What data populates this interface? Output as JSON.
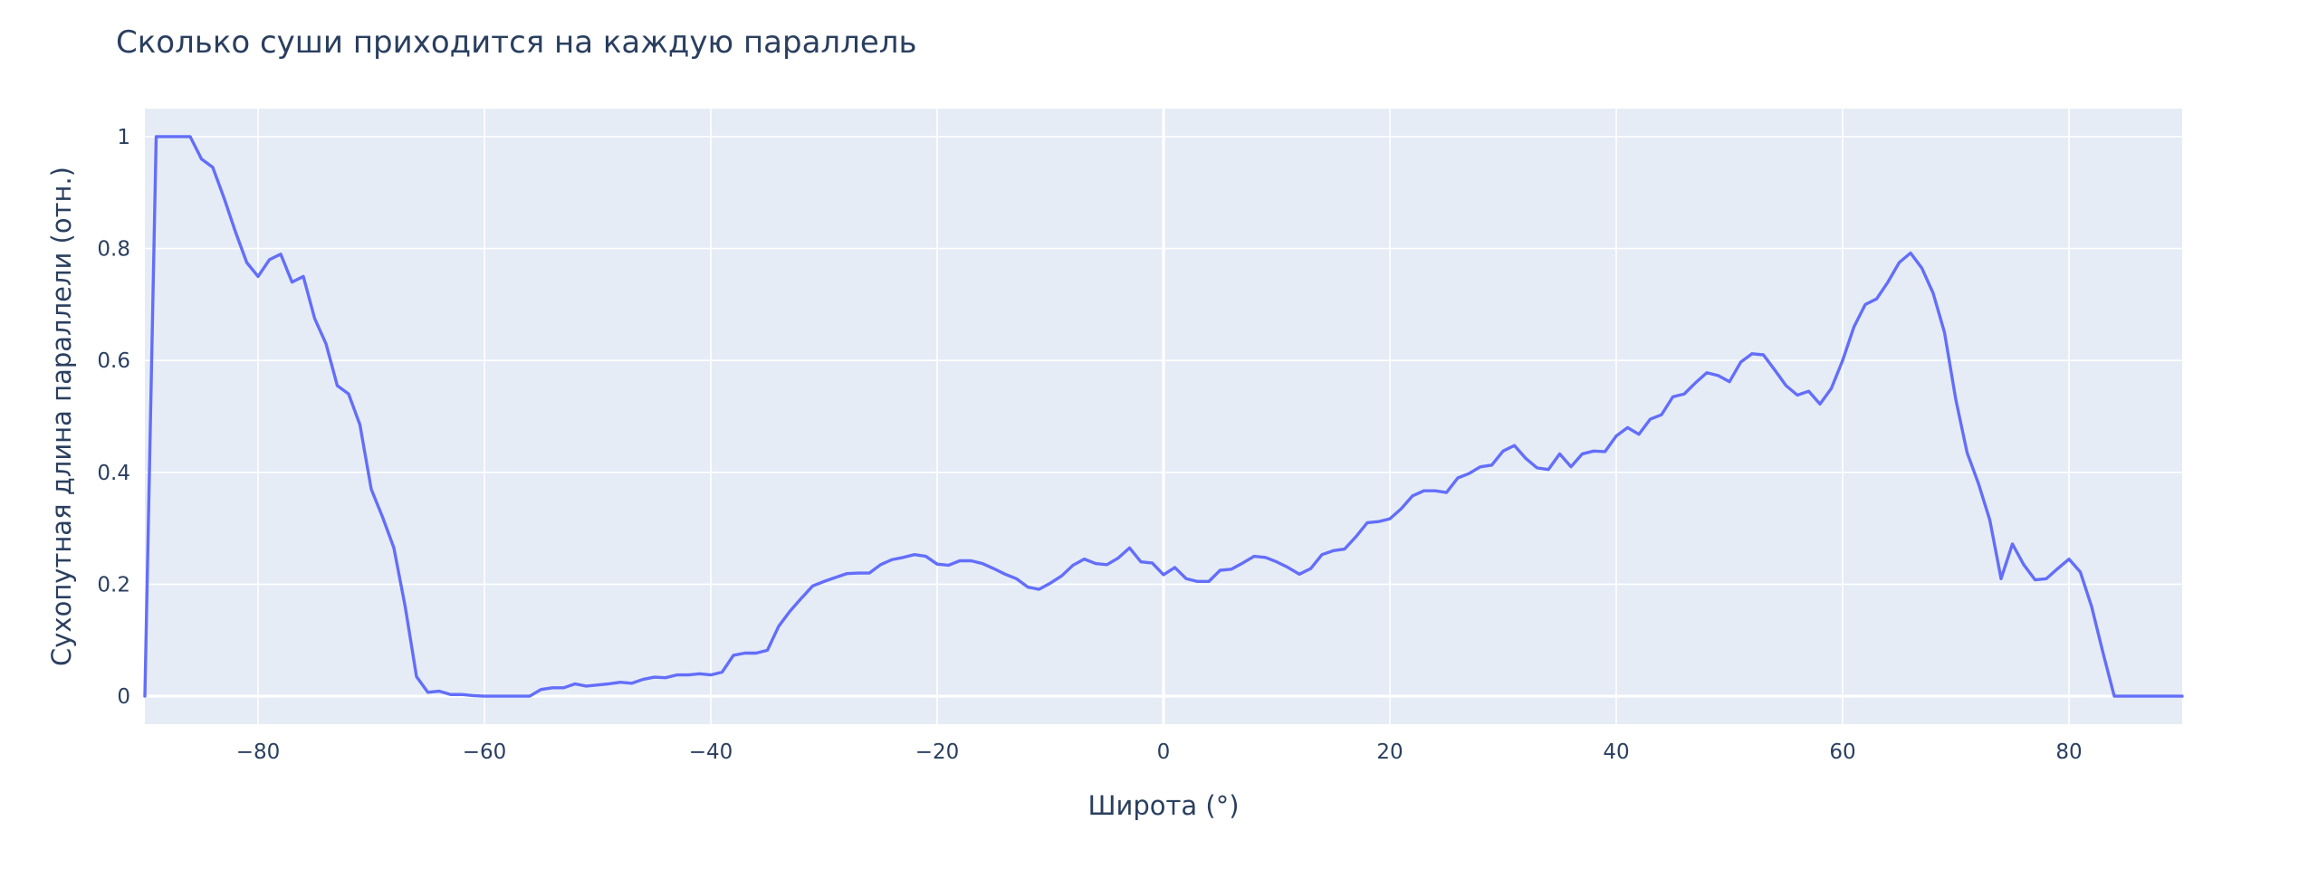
{
  "chart_data": {
    "type": "line",
    "title": "Сколько суши приходится на каждую параллель",
    "xlabel": "Широта (°)",
    "ylabel": "Сухопутная длина параллели (отн.)",
    "xlim": [
      -90,
      90
    ],
    "ylim": [
      -0.05,
      1.05
    ],
    "xticks": [
      -80,
      -60,
      -40,
      -20,
      0,
      20,
      40,
      60,
      80
    ],
    "xtick_labels": [
      "−80",
      "−60",
      "−40",
      "−20",
      "0",
      "20",
      "40",
      "60",
      "80"
    ],
    "yticks": [
      0,
      0.2,
      0.4,
      0.6,
      0.8,
      1
    ],
    "ytick_labels": [
      "0",
      "0.2",
      "0.4",
      "0.6",
      "0.8",
      "1"
    ],
    "grid": true,
    "colors": {
      "line": "#636efa",
      "plot_bg": "#e5ecf6",
      "grid": "#ffffff",
      "text": "#2a3f5f"
    },
    "series": [
      {
        "x": [
          -90,
          -89,
          -88,
          -87,
          -86,
          -85,
          -84,
          -83,
          -82,
          -81,
          -80,
          -79,
          -78,
          -77,
          -76,
          -75,
          -74,
          -73,
          -72,
          -71,
          -70,
          -69,
          -68,
          -67,
          -66,
          -65,
          -64,
          -63,
          -62,
          -61,
          -60,
          -59,
          -58,
          -57,
          -56,
          -55,
          -54,
          -53,
          -52,
          -51,
          -50,
          -49,
          -48,
          -47,
          -46,
          -45,
          -44,
          -43,
          -42,
          -41,
          -40,
          -39,
          -38,
          -37,
          -36,
          -35,
          -34,
          -33,
          -32,
          -31,
          -30,
          -29,
          -28,
          -27,
          -26,
          -25,
          -24,
          -23,
          -22,
          -21,
          -20,
          -19,
          -18,
          -17,
          -16,
          -15,
          -14,
          -13,
          -12,
          -11,
          -10,
          -9,
          -8,
          -7,
          -6,
          -5,
          -4,
          -3,
          -2,
          -1,
          0,
          1,
          2,
          3,
          4,
          5,
          6,
          7,
          8,
          9,
          10,
          11,
          12,
          13,
          14,
          15,
          16,
          17,
          18,
          19,
          20,
          21,
          22,
          23,
          24,
          25,
          26,
          27,
          28,
          29,
          30,
          31,
          32,
          33,
          34,
          35,
          36,
          37,
          38,
          39,
          40,
          41,
          42,
          43,
          44,
          45,
          46,
          47,
          48,
          49,
          50,
          51,
          52,
          53,
          54,
          55,
          56,
          57,
          58,
          59,
          60,
          61,
          62,
          63,
          64,
          65,
          66,
          67,
          68,
          69,
          70,
          71,
          72,
          73,
          74,
          75,
          76,
          77,
          78,
          79,
          80,
          81,
          82,
          83,
          84,
          85,
          86,
          87,
          88,
          89,
          90
        ],
        "y": [
          0,
          1,
          1,
          1,
          1,
          0.96,
          0.945,
          0.89,
          0.83,
          0.775,
          0.75,
          0.78,
          0.79,
          0.74,
          0.75,
          0.675,
          0.63,
          0.555,
          0.54,
          0.485,
          0.37,
          0.32,
          0.265,
          0.16,
          0.035,
          0.007,
          0.009,
          0.003,
          0.003,
          0.001,
          0,
          0,
          0,
          0,
          0,
          0.012,
          0.015,
          0.015,
          0.022,
          0.018,
          0.02,
          0.022,
          0.025,
          0.023,
          0.03,
          0.034,
          0.033,
          0.038,
          0.038,
          0.04,
          0.038,
          0.043,
          0.073,
          0.077,
          0.077,
          0.082,
          0.125,
          0.152,
          0.175,
          0.197,
          0.205,
          0.212,
          0.219,
          0.22,
          0.22,
          0.235,
          0.244,
          0.248,
          0.253,
          0.25,
          0.236,
          0.234,
          0.242,
          0.242,
          0.237,
          0.228,
          0.218,
          0.21,
          0.195,
          0.191,
          0.202,
          0.215,
          0.234,
          0.245,
          0.237,
          0.235,
          0.247,
          0.265,
          0.24,
          0.238,
          0.217,
          0.23,
          0.21,
          0.205,
          0.205,
          0.225,
          0.227,
          0.238,
          0.25,
          0.248,
          0.24,
          0.23,
          0.218,
          0.228,
          0.253,
          0.26,
          0.263,
          0.285,
          0.31,
          0.312,
          0.317,
          0.335,
          0.358,
          0.367,
          0.367,
          0.364,
          0.39,
          0.398,
          0.41,
          0.413,
          0.438,
          0.448,
          0.425,
          0.408,
          0.405,
          0.433,
          0.41,
          0.433,
          0.438,
          0.437,
          0.465,
          0.48,
          0.468,
          0.495,
          0.503,
          0.535,
          0.54,
          0.56,
          0.578,
          0.573,
          0.562,
          0.597,
          0.612,
          0.61,
          0.583,
          0.555,
          0.538,
          0.545,
          0.522,
          0.55,
          0.6,
          0.66,
          0.7,
          0.71,
          0.74,
          0.775,
          0.792,
          0.765,
          0.72,
          0.65,
          0.53,
          0.435,
          0.38,
          0.315,
          0.21,
          0.272,
          0.235,
          0.208,
          0.21,
          0.228,
          0.245,
          0.222,
          0.16,
          0.078,
          0,
          0,
          0,
          0,
          0,
          0,
          0
        ]
      }
    ]
  }
}
